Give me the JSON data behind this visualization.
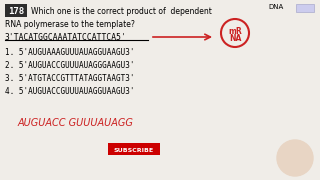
{
  "bg_color": "#f0ede8",
  "question_num": "178",
  "question_num_bg": "#2d2d2d",
  "question_num_color": "#ffffff",
  "question_line1": "Which one is the correct product of  dependent",
  "question_line2": "RNA polymerase to the template?",
  "template": "3'TACATGGCAAATATCCATTCA5'",
  "options": [
    "1. 5'AUGUAAAGUUUAUAGGUAAGU3'",
    "2. 5'AUGUACCGUUUAUAGGGAAGU3'",
    "3. 5'ATGTACCGTTTATAGGTAAGT3'",
    "4. 5'AUGUACCGUUUAUAGGUAAGU3'"
  ],
  "handwritten_note": "AUGUACC GUUUAUAGG",
  "mrna_label": "mRNA",
  "dna_label": "DNA",
  "subscribe_bg": "#cc0000",
  "subscribe_text": "SUBSCRIBE"
}
